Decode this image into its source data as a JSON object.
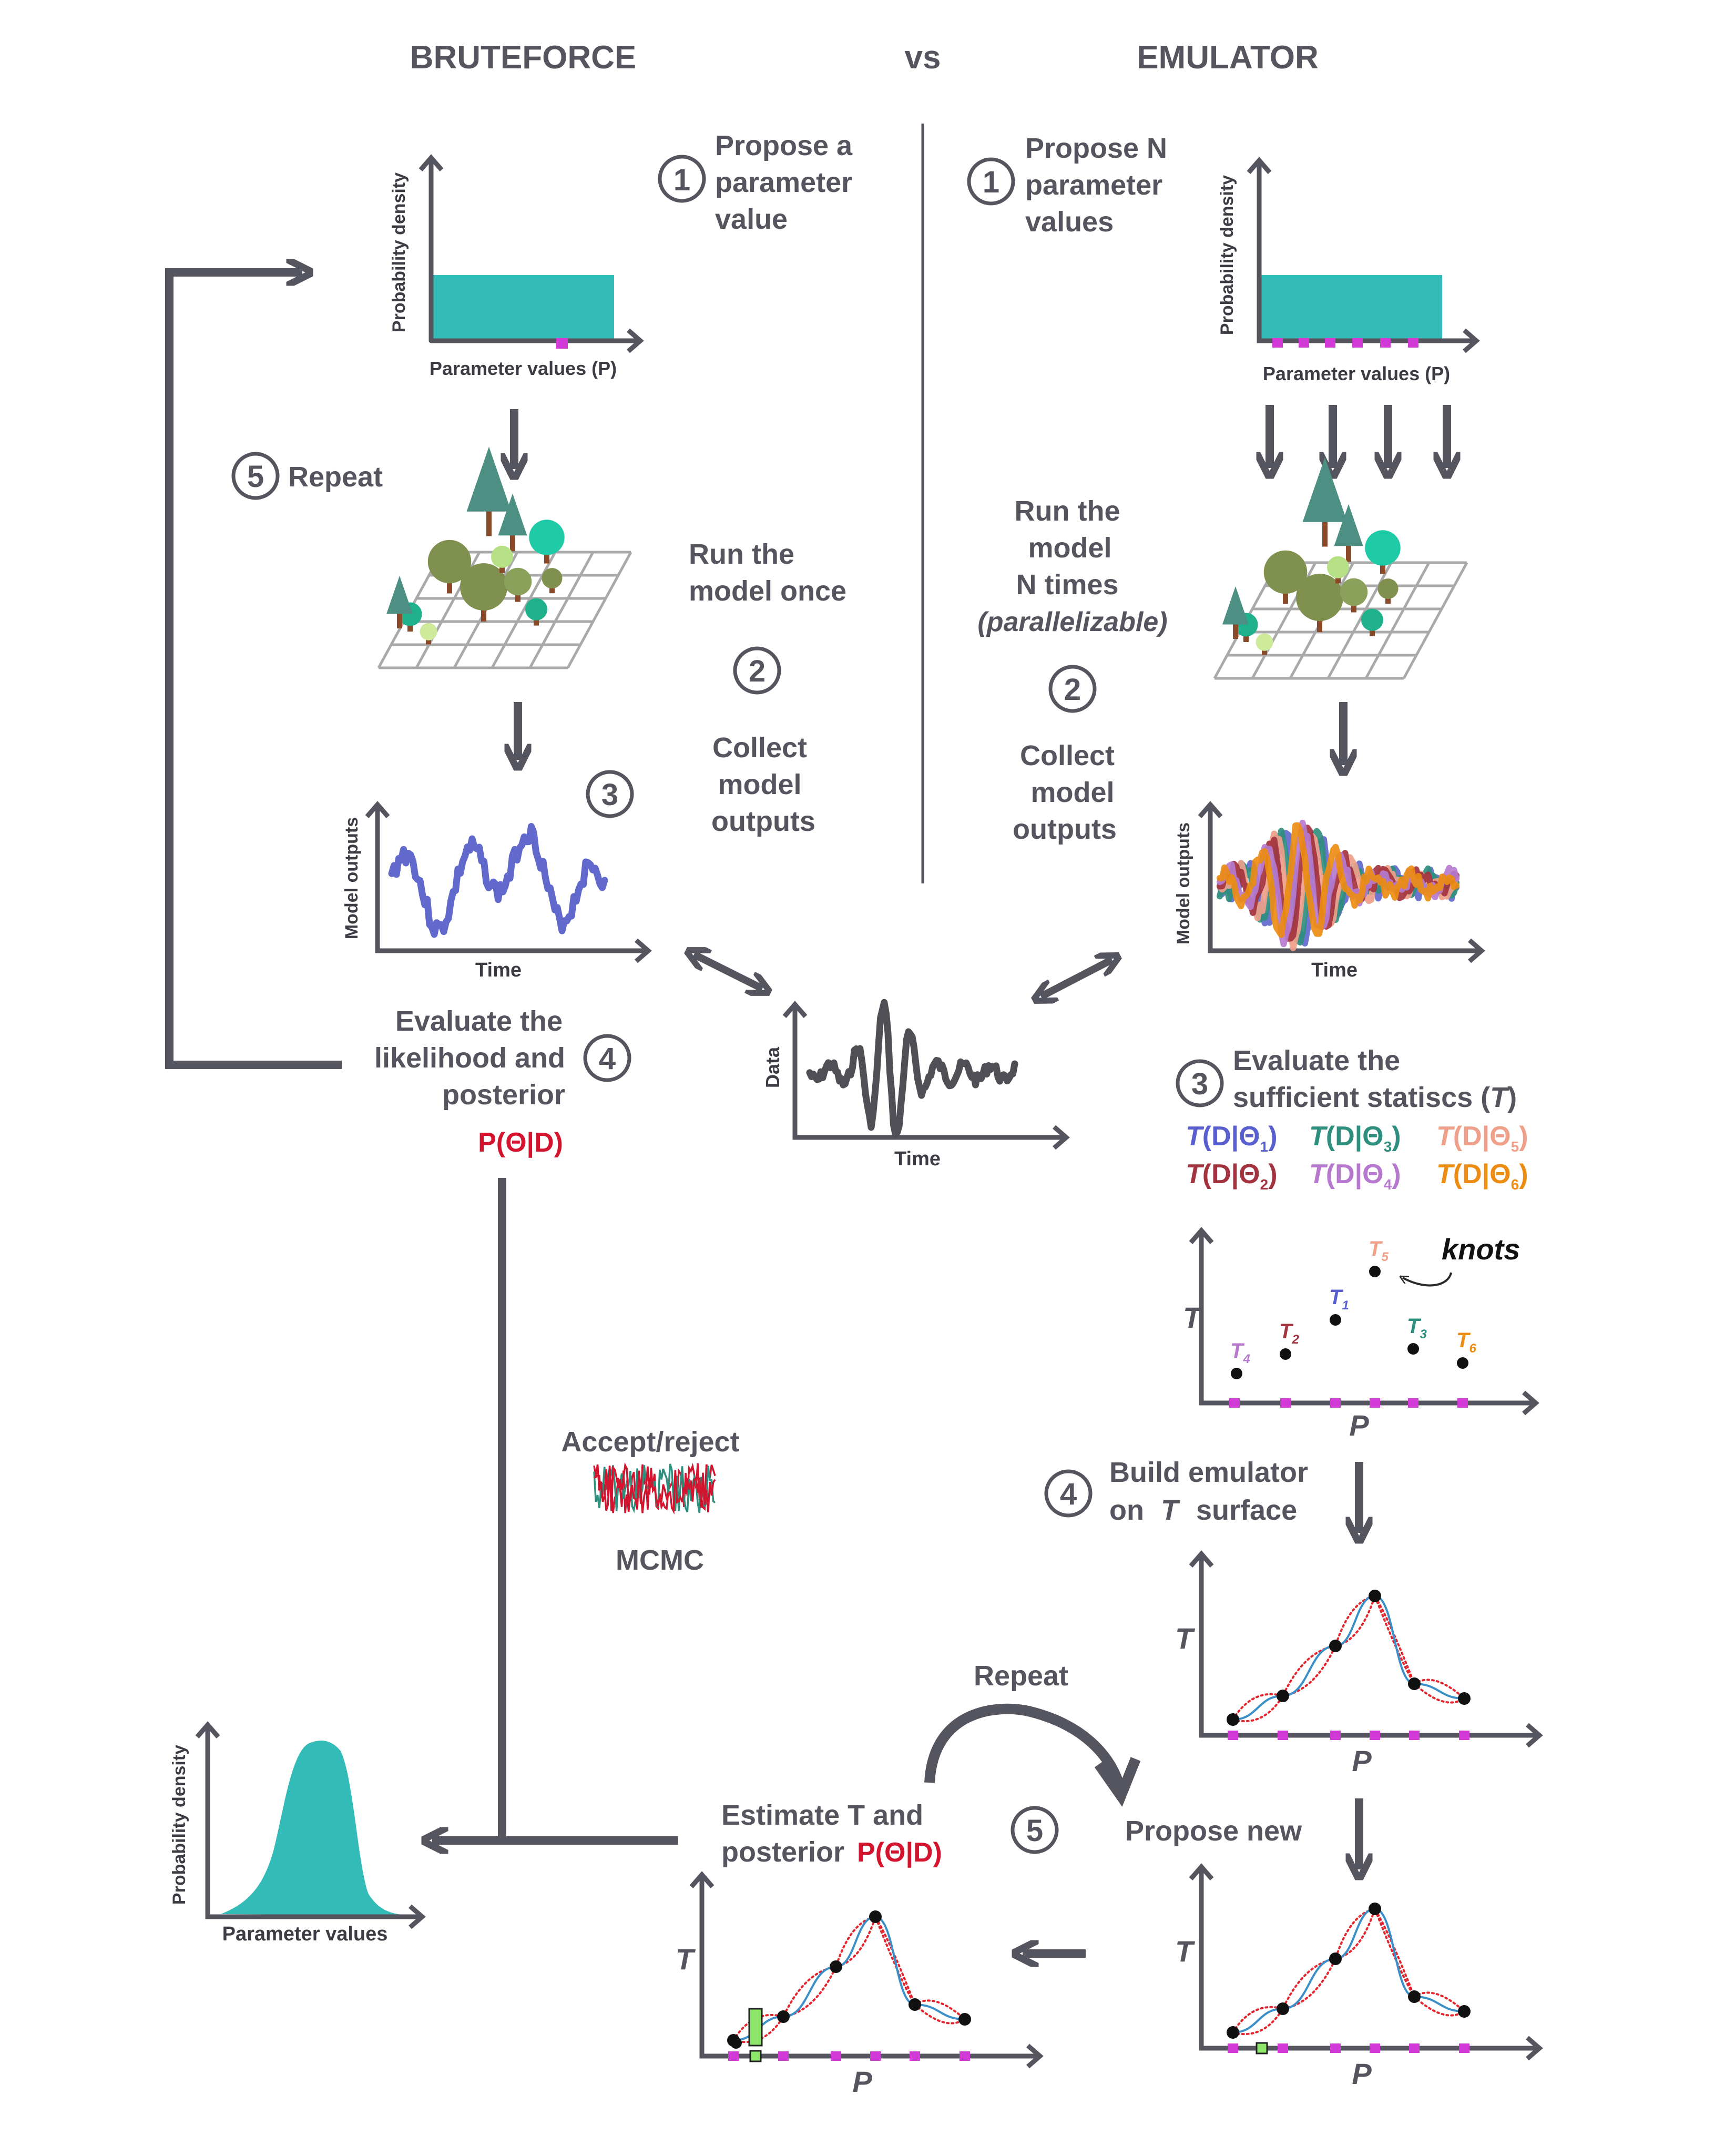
{
  "header": {
    "left": "BRUTEFORCE",
    "middle": "vs",
    "right": "EMULATOR"
  },
  "steps": {
    "s1": "1",
    "s2": "2",
    "s3": "3",
    "s4": "4",
    "s5": "5"
  },
  "bruteforce": {
    "propose": [
      "Propose a",
      "parameter",
      "value"
    ],
    "repeat": "Repeat",
    "run": [
      "Run the",
      "model once"
    ],
    "collect": [
      "Collect",
      "model",
      "outputs"
    ],
    "evaluate": [
      "Evaluate the",
      "likelihood and",
      "posterior"
    ],
    "posterior_label": "P(Θ|D)"
  },
  "emulator": {
    "propose": [
      "Propose N",
      "parameter",
      "values"
    ],
    "run": [
      "Run the",
      "model",
      "N times"
    ],
    "run_note": "(parallelizable)",
    "collect": [
      "Collect",
      "model",
      "outputs"
    ],
    "evaluate": [
      "Evaluate the",
      "sufficient statiscs ("
    ],
    "stat_T": "T",
    "stat_close": ")",
    "build": [
      "Build emulator",
      "on",
      "surface"
    ],
    "propose_new": "Propose new",
    "repeat": "Repeat",
    "estimate": [
      "Estimate T and",
      "posterior"
    ],
    "posterior_label": "P(Θ|D)",
    "knots": "knots",
    "stats": [
      {
        "T": "T",
        "body": "(D|Θ",
        "sub": "1",
        "close": ")",
        "color": "#5a5fd0"
      },
      {
        "T": "T",
        "body": "(D|Θ",
        "sub": "3",
        "close": ")",
        "color": "#2f8f7e"
      },
      {
        "T": "T",
        "body": "(D|Θ",
        "sub": "5",
        "close": ")",
        "color": "#eea08a"
      },
      {
        "T": "T",
        "body": "(D|Θ",
        "sub": "2",
        "close": ")",
        "color": "#a3333e"
      },
      {
        "T": "T",
        "body": "(D|Θ",
        "sub": "4",
        "close": ")",
        "color": "#b679cf"
      },
      {
        "T": "T",
        "body": "(D|Θ",
        "sub": "6",
        "close": ")",
        "color": "#ec8c12"
      }
    ]
  },
  "center": {
    "accept": "Accept/reject",
    "mcmc": "MCMC"
  },
  "axes": {
    "prob_density": "Probability density",
    "param_values_p": "Parameter values (P)",
    "param_values": "Parameter values",
    "model_outputs": "Model outputs",
    "time": "Time",
    "data": "Data",
    "T": "T",
    "P": "P",
    "knot_letter": "T",
    "knot_subs": [
      "4",
      "2",
      "1",
      "5",
      "3",
      "6"
    ]
  },
  "colors": {
    "dark": "#55555f",
    "teal": "#33bbb7",
    "magenta": "#d23ad8",
    "red": "#d4142e",
    "blue": "#6169cc",
    "green_box": "#8ee66b",
    "emulator_line": "#3a8fc9",
    "uncertainty": "#e3262e",
    "run_series": [
      "#6169cc",
      "#2f8f7e",
      "#eea08a",
      "#a3333e",
      "#b679cf",
      "#ec8c12"
    ],
    "knot_colors": [
      "#b679cf",
      "#a3333e",
      "#5a5fd0",
      "#eea08a",
      "#2f8f7e",
      "#ec8c12"
    ]
  }
}
